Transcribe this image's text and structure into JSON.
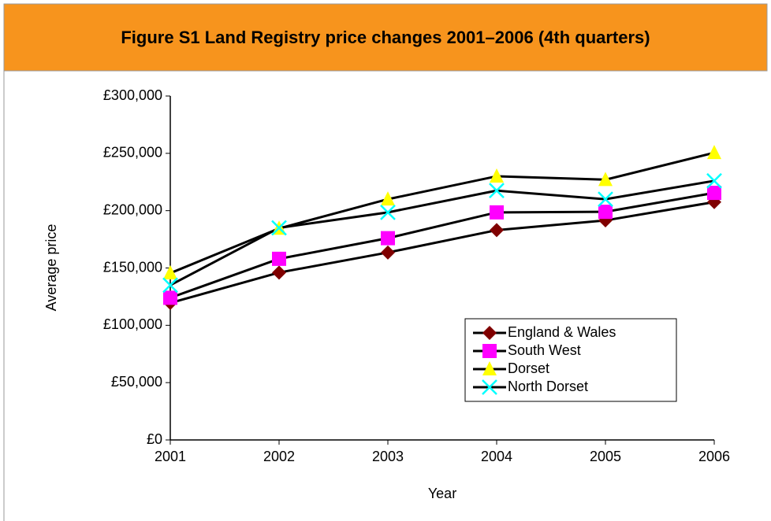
{
  "chart_data": {
    "type": "line",
    "title": "Figure S1 Land Registry price changes 2001–2006 (4th quarters)",
    "xlabel": "Year",
    "ylabel": "Average price",
    "x": [
      2001,
      2002,
      2003,
      2004,
      2005,
      2006
    ],
    "xlim": [
      2001,
      2006
    ],
    "xticks": [
      2001,
      2002,
      2003,
      2004,
      2005,
      2006
    ],
    "ylim": [
      0,
      300000
    ],
    "yticks": [
      {
        "value": 0,
        "label": "£0"
      },
      {
        "value": 50000,
        "label": "£50,000"
      },
      {
        "value": 100000,
        "label": "£100,000"
      },
      {
        "value": 150000,
        "label": "£150,000"
      },
      {
        "value": 200000,
        "label": "£200,000"
      },
      {
        "value": 250000,
        "label": "£250,000"
      },
      {
        "value": 300000,
        "label": "£300,000"
      }
    ],
    "line_color": "#000000",
    "legend": "lower right",
    "grid": false,
    "series": [
      {
        "name": "England & Wales",
        "color": "#800000",
        "marker": "diamond",
        "values": [
          119500,
          146000,
          163500,
          183000,
          191500,
          207500
        ]
      },
      {
        "name": "South West",
        "color": "#FF00FF",
        "marker": "square",
        "values": [
          124000,
          158000,
          176000,
          198500,
          199000,
          215500
        ]
      },
      {
        "name": "Dorset",
        "color": "#FFFF00",
        "marker": "triangle",
        "values": [
          145500,
          184500,
          210000,
          230000,
          227000,
          250500
        ]
      },
      {
        "name": "North Dorset",
        "color": "#00FFFF",
        "marker": "x",
        "values": [
          135000,
          185000,
          198500,
          217500,
          210000,
          226000
        ]
      }
    ]
  }
}
